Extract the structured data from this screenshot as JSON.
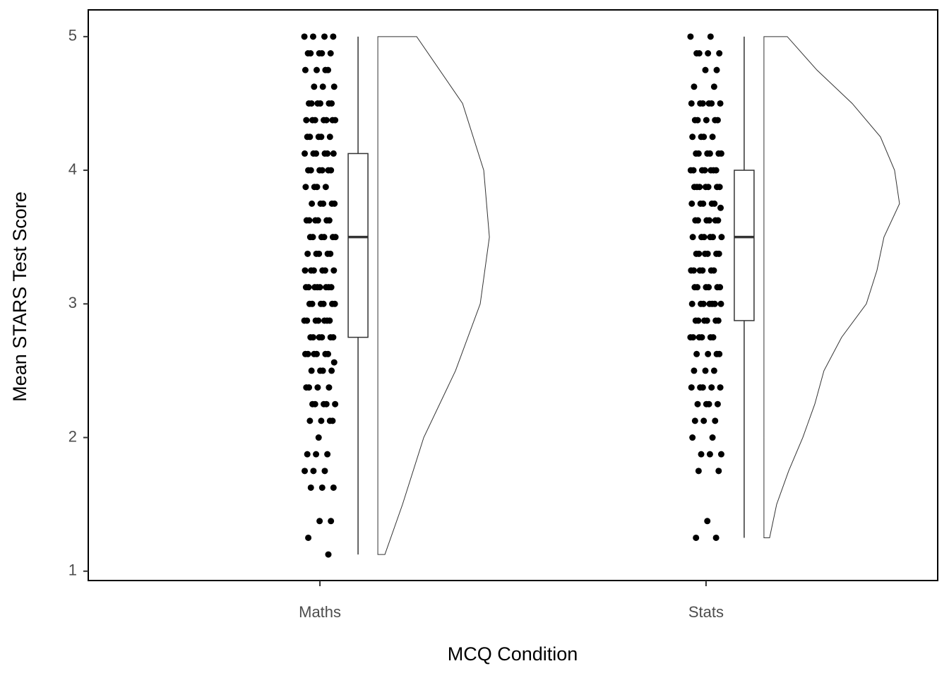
{
  "chart_data": {
    "type": "raincloud",
    "x_label": "MCQ Condition",
    "y_label": "Mean STARS Test Score",
    "categories": [
      "Maths",
      "Stats"
    ],
    "ylim": [
      0.93,
      5.2
    ],
    "yticks": [
      1,
      2,
      3,
      4,
      5
    ],
    "groups": [
      {
        "points": [
          5,
          5,
          5,
          5,
          4.875,
          4.875,
          4.875,
          4.875,
          4.875,
          4.75,
          4.75,
          4.75,
          4.75,
          4.625,
          4.625,
          4.625,
          4.5,
          4.5,
          4.5,
          4.5,
          4.5,
          4.5,
          4.375,
          4.375,
          4.375,
          4.375,
          4.375,
          4.375,
          4.375,
          4.25,
          4.25,
          4.25,
          4.25,
          4.25,
          4.125,
          4.125,
          4.125,
          4.125,
          4.125,
          4.125,
          4,
          4,
          4,
          4,
          4,
          4,
          3.875,
          3.875,
          3.875,
          3.875,
          3.75,
          3.75,
          3.75,
          3.75,
          3.75,
          3.625,
          3.625,
          3.625,
          3.625,
          3.625,
          3.625,
          3.5,
          3.5,
          3.5,
          3.5,
          3.5,
          3.5,
          3.375,
          3.375,
          3.375,
          3.375,
          3.375,
          3.25,
          3.25,
          3.25,
          3.25,
          3.25,
          3.25,
          3.125,
          3.125,
          3.125,
          3.125,
          3.125,
          3.125,
          3.125,
          3.125,
          3,
          3,
          3,
          3,
          3,
          3,
          2.875,
          2.875,
          2.875,
          2.875,
          2.875,
          2.875,
          2.875,
          2.75,
          2.75,
          2.75,
          2.75,
          2.75,
          2.75,
          2.625,
          2.625,
          2.625,
          2.625,
          2.625,
          2.625,
          2.5625,
          2.5,
          2.5,
          2.5,
          2.5,
          2.375,
          2.375,
          2.375,
          2.375,
          2.25,
          2.25,
          2.25,
          2.25,
          2.25,
          2.125,
          2.125,
          2.125,
          2.125,
          2,
          1.875,
          1.875,
          1.875,
          1.75,
          1.75,
          1.75,
          1.625,
          1.625,
          1.625,
          1.375,
          1.375,
          1.25,
          1.125
        ],
        "box": {
          "min": 1.125,
          "q1": 2.75,
          "median": 3.5,
          "q3": 4.125,
          "max": 5
        },
        "density": {
          "y": [
            1.125,
            1.5,
            2,
            2.5,
            3,
            3.5,
            4,
            4.5,
            5
          ],
          "width": [
            0.05,
            0.175,
            0.325,
            0.55,
            0.725,
            0.79,
            0.75,
            0.6,
            0.275
          ]
        }
      },
      {
        "points": [
          5,
          5,
          4.875,
          4.875,
          4.875,
          4.875,
          4.75,
          4.75,
          4.625,
          4.625,
          4.5,
          4.5,
          4.5,
          4.5,
          4.5,
          4.5,
          4.375,
          4.375,
          4.375,
          4.375,
          4.375,
          4.25,
          4.25,
          4.25,
          4.25,
          4.125,
          4.125,
          4.125,
          4.125,
          4.125,
          4.125,
          4,
          4,
          4,
          4,
          4,
          4,
          4,
          3.875,
          3.875,
          3.875,
          3.875,
          3.875,
          3.875,
          3.875,
          3.75,
          3.75,
          3.75,
          3.75,
          3.75,
          3.71875,
          3.625,
          3.625,
          3.625,
          3.625,
          3.625,
          3.625,
          3.5,
          3.5,
          3.5,
          3.5,
          3.5,
          3.5,
          3.375,
          3.375,
          3.375,
          3.375,
          3.375,
          3.375,
          3.25,
          3.25,
          3.25,
          3.25,
          3.25,
          3.25,
          3.125,
          3.125,
          3.125,
          3.125,
          3.125,
          3.125,
          3,
          3,
          3,
          3,
          3,
          3,
          3,
          2.875,
          2.875,
          2.875,
          2.875,
          2.875,
          2.875,
          2.75,
          2.75,
          2.75,
          2.75,
          2.75,
          2.75,
          2.625,
          2.625,
          2.625,
          2.625,
          2.5,
          2.5,
          2.5,
          2.375,
          2.375,
          2.375,
          2.375,
          2.375,
          2.25,
          2.25,
          2.25,
          2.25,
          2.125,
          2.125,
          2.125,
          2,
          2,
          1.875,
          1.875,
          1.875,
          1.75,
          1.75,
          1.375,
          1.25,
          1.25
        ],
        "box": {
          "min": 1.25,
          "q1": 2.875,
          "median": 3.5,
          "q3": 4,
          "max": 5
        },
        "density": {
          "y": [
            1.25,
            1.5,
            1.75,
            2,
            2.25,
            2.5,
            2.75,
            3,
            3.25,
            3.5,
            3.75,
            4,
            4.25,
            4.5,
            4.75,
            5
          ],
          "width": [
            0.04,
            0.09,
            0.175,
            0.275,
            0.36,
            0.425,
            0.55,
            0.725,
            0.8,
            0.85,
            0.96,
            0.925,
            0.825,
            0.625,
            0.375,
            0.165
          ]
        }
      }
    ]
  }
}
